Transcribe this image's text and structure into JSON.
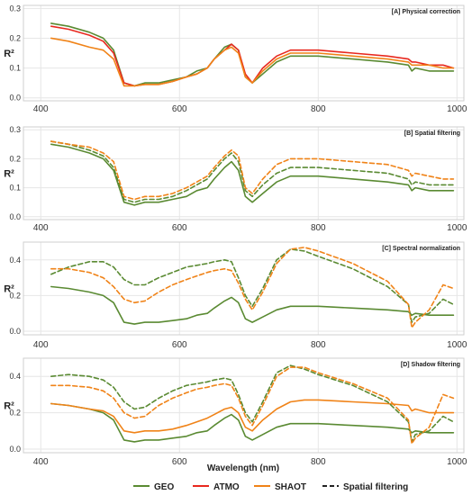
{
  "colors": {
    "GEO": "#5a8a32",
    "ATMO": "#e8281e",
    "SHAOT": "#f08318",
    "spatial": "#222222"
  },
  "chart_data": [
    {
      "type": "line",
      "title": "[A] Physical correction",
      "ylabel": "R²",
      "xlabel": "",
      "xlim": [
        375,
        1010
      ],
      "ylim": [
        -0.01,
        0.31
      ],
      "xticks": [
        "400",
        "600",
        "800",
        "1000"
      ],
      "yticks": [
        "0.0",
        "0.1",
        "0.2",
        "0.3"
      ],
      "x": [
        415,
        440,
        470,
        490,
        505,
        520,
        535,
        550,
        570,
        590,
        610,
        625,
        640,
        650,
        665,
        675,
        685,
        695,
        705,
        720,
        740,
        760,
        780,
        800,
        850,
        900,
        930,
        935,
        940,
        960,
        980,
        995
      ],
      "series": [
        {
          "name": "GEO",
          "color": "GEO",
          "dashed": false,
          "values": [
            0.25,
            0.24,
            0.22,
            0.2,
            0.16,
            0.05,
            0.04,
            0.05,
            0.05,
            0.06,
            0.07,
            0.09,
            0.1,
            0.13,
            0.17,
            0.18,
            0.16,
            0.07,
            0.05,
            0.08,
            0.12,
            0.14,
            0.14,
            0.14,
            0.13,
            0.12,
            0.11,
            0.09,
            0.1,
            0.09,
            0.09,
            0.09
          ]
        },
        {
          "name": "ATMO",
          "color": "ATMO",
          "dashed": false,
          "values": [
            0.24,
            0.23,
            0.21,
            0.19,
            0.15,
            0.05,
            0.04,
            0.045,
            0.045,
            0.055,
            0.07,
            0.08,
            0.1,
            0.13,
            0.16,
            0.18,
            0.16,
            0.08,
            0.05,
            0.1,
            0.14,
            0.16,
            0.16,
            0.16,
            0.15,
            0.14,
            0.13,
            0.12,
            0.12,
            0.11,
            0.11,
            0.1
          ]
        },
        {
          "name": "SHAOT",
          "color": "SHAOT",
          "dashed": false,
          "values": [
            0.2,
            0.19,
            0.17,
            0.16,
            0.13,
            0.04,
            0.04,
            0.045,
            0.045,
            0.055,
            0.07,
            0.08,
            0.1,
            0.13,
            0.16,
            0.17,
            0.15,
            0.07,
            0.05,
            0.09,
            0.13,
            0.15,
            0.15,
            0.15,
            0.14,
            0.13,
            0.12,
            0.11,
            0.11,
            0.11,
            0.1,
            0.1
          ]
        }
      ]
    },
    {
      "type": "line",
      "title": "[B] Spatial filtering",
      "ylabel": "R²",
      "xlabel": "",
      "xlim": [
        375,
        1010
      ],
      "ylim": [
        -0.01,
        0.31
      ],
      "xticks": [
        "400",
        "600",
        "800",
        "1000"
      ],
      "yticks": [
        "0.0",
        "0.1",
        "0.2",
        "0.3"
      ],
      "x": [
        415,
        440,
        470,
        490,
        505,
        520,
        535,
        550,
        570,
        590,
        610,
        625,
        640,
        650,
        665,
        675,
        685,
        695,
        705,
        720,
        740,
        760,
        780,
        800,
        850,
        900,
        930,
        935,
        940,
        960,
        980,
        995
      ],
      "series": [
        {
          "name": "GEO",
          "color": "GEO",
          "dashed": false,
          "values": [
            0.25,
            0.24,
            0.22,
            0.2,
            0.16,
            0.05,
            0.04,
            0.05,
            0.05,
            0.06,
            0.07,
            0.09,
            0.1,
            0.13,
            0.17,
            0.19,
            0.16,
            0.07,
            0.05,
            0.08,
            0.12,
            0.14,
            0.14,
            0.14,
            0.13,
            0.12,
            0.11,
            0.09,
            0.1,
            0.09,
            0.09,
            0.09
          ]
        },
        {
          "name": "GEO",
          "color": "GEO",
          "dashed": true,
          "values": [
            0.26,
            0.25,
            0.23,
            0.21,
            0.17,
            0.06,
            0.05,
            0.06,
            0.06,
            0.07,
            0.09,
            0.11,
            0.13,
            0.16,
            0.2,
            0.22,
            0.19,
            0.09,
            0.07,
            0.11,
            0.15,
            0.17,
            0.17,
            0.17,
            0.16,
            0.15,
            0.13,
            0.11,
            0.12,
            0.11,
            0.11,
            0.11
          ]
        },
        {
          "name": "SHAOT",
          "color": "SHAOT",
          "dashed": true,
          "values": [
            0.26,
            0.25,
            0.24,
            0.22,
            0.19,
            0.07,
            0.06,
            0.07,
            0.07,
            0.08,
            0.1,
            0.12,
            0.14,
            0.17,
            0.21,
            0.23,
            0.21,
            0.1,
            0.08,
            0.13,
            0.18,
            0.2,
            0.2,
            0.2,
            0.19,
            0.18,
            0.16,
            0.14,
            0.15,
            0.14,
            0.13,
            0.13
          ]
        }
      ]
    },
    {
      "type": "line",
      "title": "[C] Spectral normalization",
      "ylabel": "R²",
      "xlabel": "",
      "xlim": [
        375,
        1010
      ],
      "ylim": [
        -0.02,
        0.5
      ],
      "xticks": [
        "400",
        "600",
        "800",
        "1000"
      ],
      "yticks": [
        "0.0",
        "0.2",
        "0.4"
      ],
      "x": [
        415,
        440,
        470,
        490,
        505,
        520,
        535,
        550,
        570,
        590,
        610,
        625,
        640,
        650,
        665,
        675,
        685,
        695,
        705,
        720,
        740,
        760,
        780,
        800,
        850,
        900,
        930,
        935,
        940,
        960,
        980,
        995
      ],
      "series": [
        {
          "name": "GEO",
          "color": "GEO",
          "dashed": false,
          "values": [
            0.25,
            0.24,
            0.22,
            0.2,
            0.16,
            0.05,
            0.04,
            0.05,
            0.05,
            0.06,
            0.07,
            0.09,
            0.1,
            0.13,
            0.17,
            0.19,
            0.16,
            0.07,
            0.05,
            0.08,
            0.12,
            0.14,
            0.14,
            0.14,
            0.13,
            0.12,
            0.11,
            0.09,
            0.1,
            0.09,
            0.09,
            0.09
          ]
        },
        {
          "name": "GEO",
          "color": "GEO",
          "dashed": true,
          "values": [
            0.32,
            0.36,
            0.39,
            0.39,
            0.36,
            0.29,
            0.26,
            0.26,
            0.3,
            0.33,
            0.36,
            0.37,
            0.38,
            0.39,
            0.4,
            0.39,
            0.3,
            0.2,
            0.14,
            0.24,
            0.4,
            0.46,
            0.45,
            0.42,
            0.35,
            0.25,
            0.15,
            0.05,
            0.08,
            0.1,
            0.18,
            0.15
          ]
        },
        {
          "name": "SHAOT",
          "color": "SHAOT",
          "dashed": true,
          "values": [
            0.35,
            0.35,
            0.33,
            0.3,
            0.25,
            0.18,
            0.16,
            0.17,
            0.22,
            0.26,
            0.29,
            0.31,
            0.33,
            0.34,
            0.35,
            0.34,
            0.27,
            0.18,
            0.12,
            0.22,
            0.38,
            0.46,
            0.47,
            0.45,
            0.38,
            0.28,
            0.15,
            0.02,
            0.05,
            0.12,
            0.26,
            0.24
          ]
        }
      ]
    },
    {
      "type": "line",
      "title": "[D] Shadow filtering",
      "ylabel": "R²",
      "xlabel": "Wavelength (nm)",
      "xlim": [
        375,
        1010
      ],
      "ylim": [
        -0.02,
        0.5
      ],
      "xticks": [
        "400",
        "600",
        "800",
        "1000"
      ],
      "yticks": [
        "0.0",
        "0.2",
        "0.4"
      ],
      "x": [
        415,
        440,
        470,
        490,
        505,
        520,
        535,
        550,
        570,
        590,
        610,
        625,
        640,
        650,
        665,
        675,
        685,
        695,
        705,
        720,
        740,
        760,
        780,
        800,
        850,
        900,
        930,
        935,
        940,
        960,
        980,
        995
      ],
      "series": [
        {
          "name": "GEO",
          "color": "GEO",
          "dashed": false,
          "values": [
            0.25,
            0.24,
            0.22,
            0.2,
            0.16,
            0.05,
            0.04,
            0.05,
            0.05,
            0.06,
            0.07,
            0.09,
            0.1,
            0.13,
            0.17,
            0.19,
            0.16,
            0.07,
            0.05,
            0.08,
            0.12,
            0.14,
            0.14,
            0.14,
            0.13,
            0.12,
            0.11,
            0.09,
            0.1,
            0.09,
            0.09,
            0.09
          ]
        },
        {
          "name": "SHAOT",
          "color": "SHAOT",
          "dashed": false,
          "values": [
            0.25,
            0.24,
            0.22,
            0.21,
            0.18,
            0.1,
            0.09,
            0.1,
            0.1,
            0.11,
            0.13,
            0.15,
            0.17,
            0.19,
            0.22,
            0.23,
            0.2,
            0.12,
            0.1,
            0.16,
            0.22,
            0.26,
            0.27,
            0.27,
            0.26,
            0.25,
            0.24,
            0.21,
            0.22,
            0.2,
            0.2,
            0.2
          ]
        },
        {
          "name": "GEO",
          "color": "GEO",
          "dashed": true,
          "values": [
            0.4,
            0.41,
            0.4,
            0.38,
            0.34,
            0.26,
            0.22,
            0.23,
            0.28,
            0.32,
            0.35,
            0.36,
            0.37,
            0.38,
            0.39,
            0.38,
            0.3,
            0.2,
            0.15,
            0.26,
            0.42,
            0.46,
            0.44,
            0.41,
            0.35,
            0.26,
            0.15,
            0.04,
            0.08,
            0.1,
            0.18,
            0.15
          ]
        },
        {
          "name": "SHAOT",
          "color": "SHAOT",
          "dashed": true,
          "values": [
            0.35,
            0.35,
            0.34,
            0.32,
            0.28,
            0.2,
            0.17,
            0.18,
            0.24,
            0.28,
            0.31,
            0.33,
            0.34,
            0.35,
            0.36,
            0.35,
            0.28,
            0.18,
            0.13,
            0.24,
            0.4,
            0.45,
            0.45,
            0.42,
            0.36,
            0.28,
            0.16,
            0.03,
            0.06,
            0.12,
            0.3,
            0.28
          ]
        }
      ]
    }
  ],
  "legend": {
    "items": [
      {
        "label": "GEO",
        "color": "GEO",
        "dashed": false
      },
      {
        "label": "ATMO",
        "color": "ATMO",
        "dashed": false
      },
      {
        "label": "SHAOT",
        "color": "SHAOT",
        "dashed": false
      },
      {
        "label": "Spatial filtering",
        "color": "spatial",
        "dashed": true
      }
    ]
  }
}
